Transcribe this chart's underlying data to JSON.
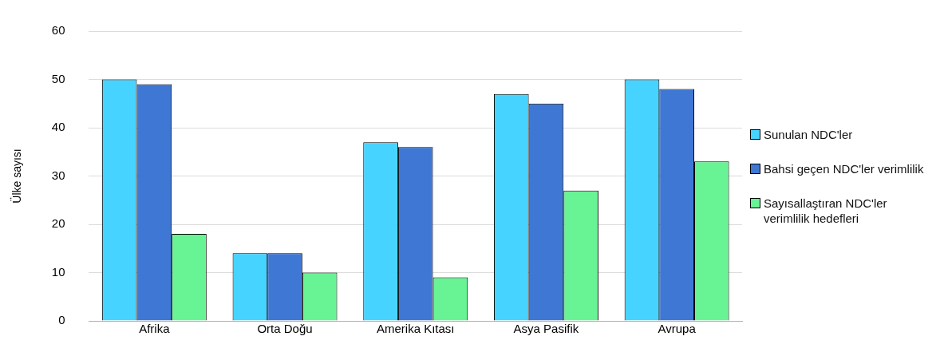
{
  "chart_data": {
    "type": "bar",
    "ylabel": "Ülke sayısı",
    "categories": [
      "Afrika",
      "Orta Doğu",
      "Amerika Kıtası",
      "Asya Pasifik",
      "Avrupa"
    ],
    "series": [
      {
        "name": "Sunulan NDC'ler",
        "color": "#47d3ff",
        "values": [
          50,
          14,
          37,
          47,
          50
        ]
      },
      {
        "name": "Bahsi geçen NDC'ler verimlilik",
        "color": "#3e78d4",
        "values": [
          49,
          14,
          36,
          45,
          48
        ]
      },
      {
        "name": "Sayısallaştıran NDC'ler verimlilik hedefleri",
        "color": "#68f494",
        "values": [
          18,
          10,
          9,
          27,
          33
        ]
      }
    ],
    "ylim": [
      0,
      60
    ],
    "yticks": [
      0,
      10,
      20,
      30,
      40,
      50,
      60
    ],
    "grid": "y",
    "legend": "right"
  }
}
